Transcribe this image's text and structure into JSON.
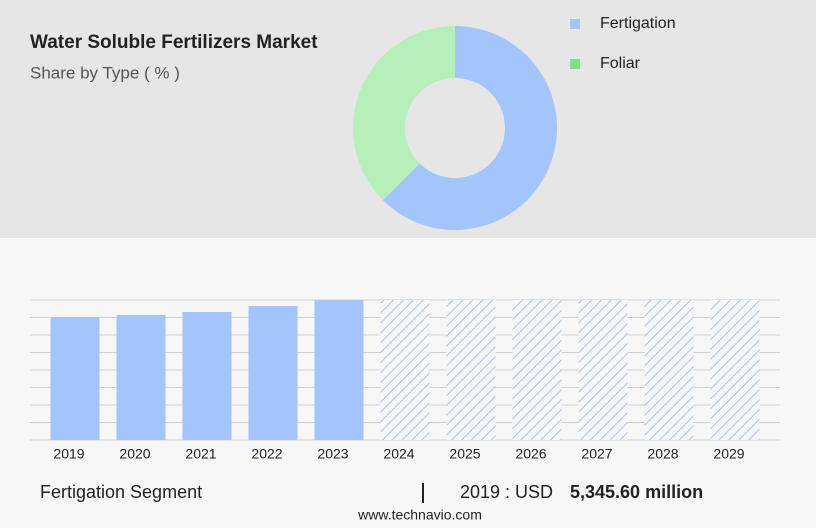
{
  "chart_data": [
    {
      "type": "pie",
      "title": "Water Soluble Fertilizers Market",
      "subtitle": "Share by Type ( % )",
      "categories": [
        "Fertigation",
        "Foliar"
      ],
      "values": [
        62.5,
        37.5
      ],
      "colors": [
        "#a4c4fc",
        "#b5efb9"
      ],
      "legend_colors": [
        "#a4c4fc",
        "#7fe08c"
      ],
      "donut": true
    },
    {
      "type": "bar",
      "categories": [
        "2019",
        "2020",
        "2021",
        "2022",
        "2023",
        "2024",
        "2025",
        "2026",
        "2027",
        "2028",
        "2029"
      ],
      "values": [
        5345.6,
        5433,
        5563,
        5824,
        6085,
        null,
        null,
        null,
        null,
        null,
        null
      ],
      "color": "#a4c4fc",
      "ylim": [
        0,
        6085
      ],
      "grid": true
    }
  ],
  "footer": {
    "segment": "Fertigation Segment",
    "year_label": "2019 : USD",
    "value": "5,345.60 million",
    "source": "www.technavio.com"
  }
}
